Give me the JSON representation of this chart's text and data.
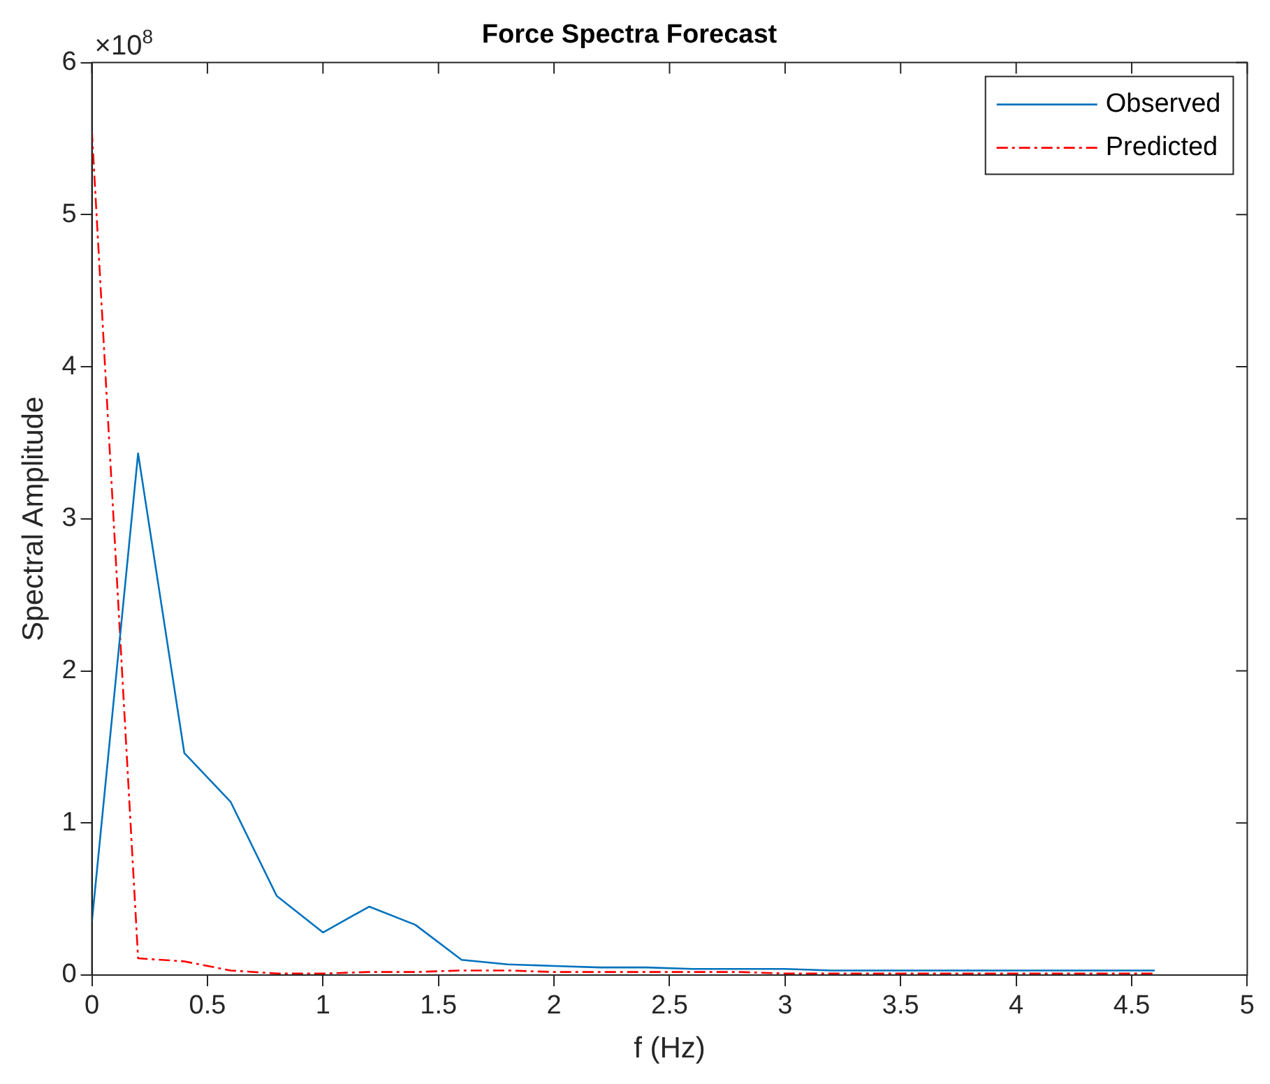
{
  "chart_data": {
    "type": "line",
    "title": "Force Spectra Forecast",
    "xlabel": "f (Hz)",
    "ylabel": "Spectral Amplitude",
    "annotations": [
      "×10$^{8}$"
    ],
    "x": [
      0,
      0.2,
      0.4,
      0.6,
      0.8,
      1.0,
      1.2,
      1.4,
      1.6,
      1.8,
      2.0,
      2.2,
      2.4,
      2.6,
      2.8,
      3.0,
      3.2,
      3.4,
      3.6,
      3.8,
      4.0,
      4.2,
      4.4,
      4.6
    ],
    "series": [
      {
        "name": "Observed",
        "color": "#0072bd",
        "line_style": "solid",
        "values": [
          0.35,
          3.43,
          1.46,
          1.14,
          0.52,
          0.28,
          0.45,
          0.33,
          0.1,
          0.07,
          0.06,
          0.05,
          0.05,
          0.04,
          0.04,
          0.04,
          0.03,
          0.03,
          0.03,
          0.03,
          0.03,
          0.03,
          0.03,
          0.03
        ]
      },
      {
        "name": "Predicted",
        "color": "#ff0000",
        "line_style": "dashdot",
        "values": [
          5.55,
          0.11,
          0.09,
          0.03,
          0.01,
          0.01,
          0.02,
          0.02,
          0.03,
          0.03,
          0.02,
          0.02,
          0.02,
          0.02,
          0.02,
          0.01,
          0.01,
          0.01,
          0.01,
          0.01,
          0.01,
          0.01,
          0.01,
          0.01
        ]
      }
    ],
    "xlim": [
      0,
      5
    ],
    "xticks": [
      0,
      0.5,
      1,
      1.5,
      2,
      2.5,
      3,
      3.5,
      4,
      4.5,
      5
    ],
    "ylim": [
      0,
      6
    ],
    "yticks": [
      0,
      1,
      2,
      3,
      4,
      5,
      6
    ],
    "grid": false,
    "legend": "top right",
    "marker": "none"
  }
}
